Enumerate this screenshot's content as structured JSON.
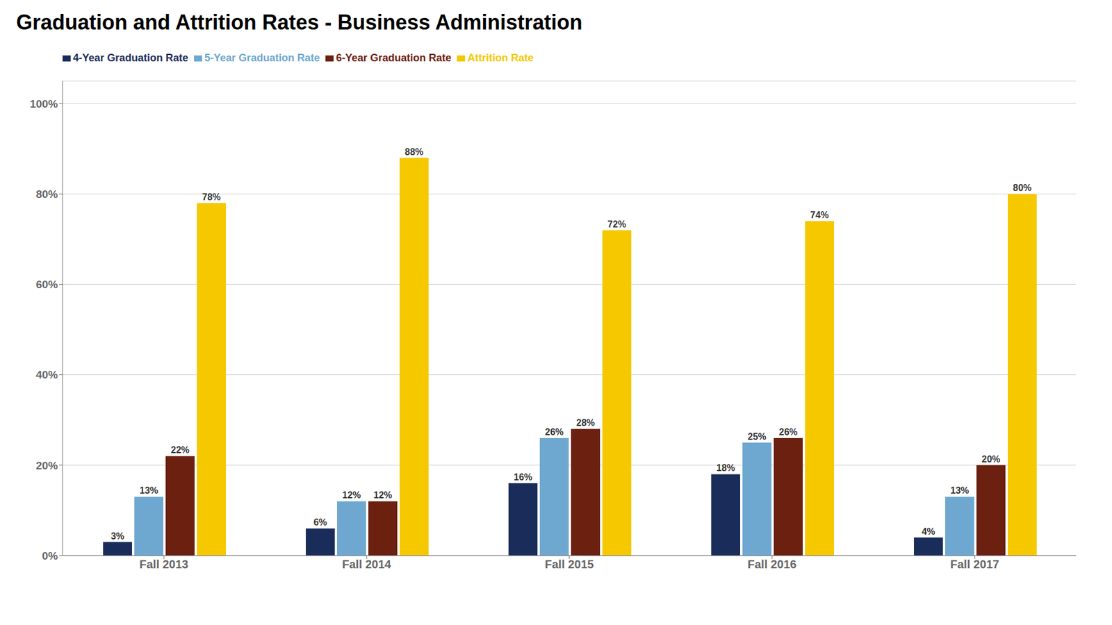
{
  "chart_data": {
    "type": "bar",
    "title": "Graduation and Attrition Rates - Business Administration",
    "categories": [
      "Fall 2013",
      "Fall 2014",
      "Fall 2015",
      "Fall 2016",
      "Fall 2017"
    ],
    "series": [
      {
        "name": "4-Year Graduation Rate",
        "color": "#1a2d5a",
        "values": [
          3,
          6,
          16,
          18,
          4
        ],
        "value_labels": [
          "3%",
          "6%",
          "16%",
          "18%",
          "4%"
        ]
      },
      {
        "name": "5-Year Graduation Rate",
        "color": "#6ea8d0",
        "values": [
          13,
          12,
          26,
          25,
          13
        ],
        "value_labels": [
          "13%",
          "12%",
          "26%",
          "25%",
          "13%"
        ]
      },
      {
        "name": "6-Year Graduation Rate",
        "color": "#6b2010",
        "values": [
          22,
          12,
          28,
          26,
          20
        ],
        "value_labels": [
          "22%",
          "12%",
          "28%",
          "26%",
          "20%"
        ]
      },
      {
        "name": "Attrition Rate",
        "color": "#f5c800",
        "values": [
          78,
          88,
          72,
          74,
          80
        ],
        "value_labels": [
          "78%",
          "88%",
          "72%",
          "74%",
          "80%"
        ]
      }
    ],
    "ylim": [
      0,
      105
    ],
    "yticks": [
      {
        "value": 0,
        "label": "0%"
      },
      {
        "value": 20,
        "label": "20%"
      },
      {
        "value": 40,
        "label": "40%"
      },
      {
        "value": 60,
        "label": "60%"
      },
      {
        "value": 80,
        "label": "80%"
      },
      {
        "value": 100,
        "label": "100%"
      }
    ],
    "grid": true,
    "legend": "upper left",
    "data_labels": true
  }
}
